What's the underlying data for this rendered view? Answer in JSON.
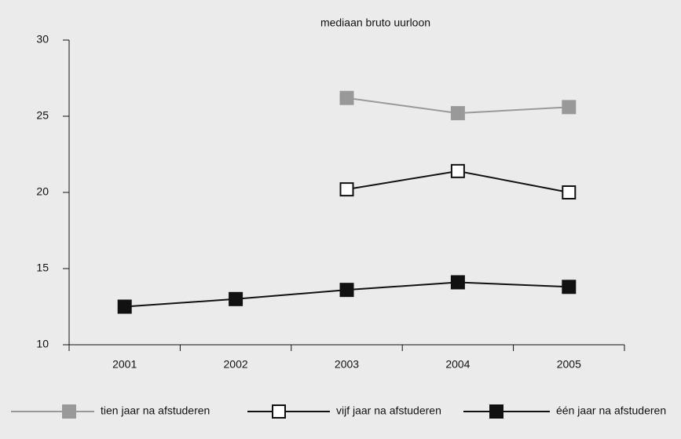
{
  "chart_data": {
    "type": "line",
    "title": "mediaan bruto uurloon",
    "categories": [
      "2001",
      "2002",
      "2003",
      "2004",
      "2005"
    ],
    "series": [
      {
        "name": "tien jaar na afstuderen",
        "color": "#999999",
        "marker_fill": "#999999",
        "values": [
          null,
          null,
          26.2,
          25.2,
          25.6
        ]
      },
      {
        "name": "vijf jaar na afstuderen",
        "color": "#111111",
        "marker_fill": "#ffffff",
        "values": [
          null,
          null,
          20.2,
          21.4,
          20.0
        ]
      },
      {
        "name": "één jaar na afstuderen",
        "color": "#111111",
        "marker_fill": "#111111",
        "values": [
          12.5,
          13.0,
          13.6,
          14.1,
          13.8
        ]
      }
    ],
    "ylim": [
      10,
      30
    ],
    "yticks": [
      10,
      15,
      20,
      25,
      30
    ],
    "grid": false,
    "legend": "bottom"
  }
}
